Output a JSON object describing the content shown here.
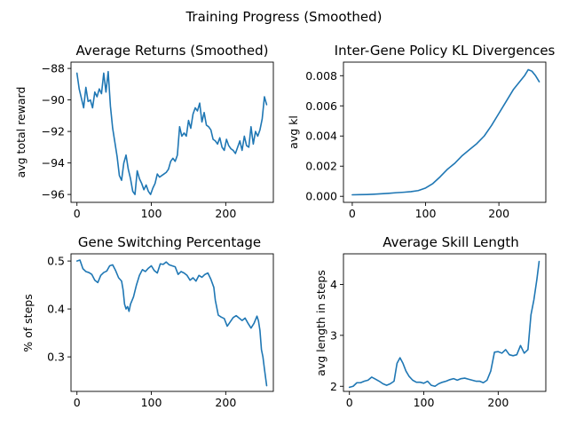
{
  "figure_title": "Training Progress (Smoothed)",
  "colors": {
    "series": "#1f77b4",
    "axes": "#000000",
    "background": "#ffffff"
  },
  "chart_data": [
    {
      "type": "line",
      "title": "Average Returns (Smoothed)",
      "xlabel": "",
      "ylabel": "avg total reward",
      "xlim": [
        -8,
        264
      ],
      "ylim": [
        -96.5,
        -87.6
      ],
      "xticks": [
        0,
        100,
        200
      ],
      "xtick_labels": [
        "0",
        "100",
        "200"
      ],
      "yticks": [
        -96,
        -94,
        -92,
        -90,
        -88
      ],
      "ytick_labels": [
        "−96",
        "−94",
        "−92",
        "−90",
        "−88"
      ],
      "grid": false,
      "series": [
        {
          "x": [
            0,
            3,
            6,
            9,
            12,
            15,
            18,
            21,
            24,
            27,
            30,
            33,
            36,
            39,
            42,
            45,
            48,
            51,
            54,
            57,
            60,
            63,
            66,
            69,
            72,
            75,
            78,
            81,
            84,
            87,
            90,
            93,
            96,
            99,
            102,
            105,
            108,
            111,
            114,
            117,
            120,
            123,
            126,
            129,
            132,
            135,
            138,
            141,
            144,
            147,
            150,
            153,
            156,
            159,
            162,
            165,
            168,
            171,
            174,
            177,
            180,
            183,
            186,
            189,
            192,
            195,
            198,
            201,
            204,
            207,
            210,
            213,
            216,
            219,
            222,
            225,
            228,
            231,
            234,
            237,
            240,
            243,
            246,
            249,
            252,
            255
          ],
          "y": [
            -88.3,
            -89.3,
            -89.9,
            -90.5,
            -89.2,
            -90.1,
            -90.0,
            -90.5,
            -89.5,
            -89.8,
            -89.3,
            -89.6,
            -88.3,
            -89.5,
            -88.2,
            -90.4,
            -91.8,
            -92.7,
            -93.6,
            -94.8,
            -95.1,
            -94.0,
            -93.5,
            -94.4,
            -95.0,
            -95.8,
            -96.0,
            -94.5,
            -95.0,
            -95.3,
            -95.7,
            -95.4,
            -95.8,
            -96.0,
            -95.6,
            -95.3,
            -94.7,
            -94.9,
            -94.8,
            -94.7,
            -94.6,
            -94.4,
            -93.9,
            -93.7,
            -93.9,
            -93.5,
            -91.7,
            -92.3,
            -92.1,
            -92.3,
            -91.3,
            -91.8,
            -90.9,
            -90.5,
            -90.7,
            -90.2,
            -91.4,
            -90.8,
            -91.6,
            -91.7,
            -91.9,
            -92.5,
            -92.6,
            -92.8,
            -92.4,
            -93.0,
            -93.2,
            -92.5,
            -92.9,
            -93.1,
            -93.2,
            -93.4,
            -93.0,
            -92.6,
            -93.2,
            -92.3,
            -92.9,
            -93.0,
            -91.7,
            -92.8,
            -92.0,
            -92.3,
            -91.9,
            -91.2,
            -89.8,
            -90.3
          ]
        }
      ]
    },
    {
      "type": "line",
      "title": "Inter-Gene Policy KL Divergences",
      "xlabel": "",
      "ylabel": "avg kl",
      "xlim": [
        -12,
        264
      ],
      "ylim": [
        -0.0004,
        0.0089
      ],
      "xticks": [
        0,
        100,
        200
      ],
      "xtick_labels": [
        "0",
        "100",
        "200"
      ],
      "yticks": [
        0.0,
        0.002,
        0.004,
        0.006,
        0.008
      ],
      "ytick_labels": [
        "0.000",
        "0.002",
        "0.004",
        "0.006",
        "0.008"
      ],
      "grid": false,
      "series": [
        {
          "x": [
            0,
            10,
            20,
            30,
            40,
            50,
            60,
            70,
            80,
            90,
            100,
            110,
            120,
            130,
            140,
            150,
            160,
            170,
            180,
            190,
            200,
            210,
            220,
            230,
            235,
            240,
            245,
            250,
            255
          ],
          "y": [
            0.0001,
            0.00011,
            0.00012,
            0.00014,
            0.00017,
            0.0002,
            0.00024,
            0.00027,
            0.00031,
            0.00038,
            0.00055,
            0.00085,
            0.0013,
            0.0018,
            0.0022,
            0.0027,
            0.0031,
            0.0035,
            0.004,
            0.0047,
            0.0055,
            0.0063,
            0.0071,
            0.0077,
            0.008,
            0.0084,
            0.0083,
            0.008,
            0.0076
          ]
        }
      ]
    },
    {
      "type": "line",
      "title": "Gene Switching Percentage",
      "xlabel": "",
      "ylabel": "% of steps",
      "xlim": [
        -8,
        264
      ],
      "ylim": [
        0.228,
        0.515
      ],
      "xticks": [
        0,
        100,
        200
      ],
      "xtick_labels": [
        "0",
        "100",
        "200"
      ],
      "yticks": [
        0.3,
        0.4,
        0.5
      ],
      "ytick_labels": [
        "0.3",
        "0.4",
        "0.5"
      ],
      "grid": false,
      "series": [
        {
          "x": [
            0,
            4,
            8,
            12,
            16,
            20,
            24,
            28,
            32,
            36,
            40,
            44,
            48,
            52,
            56,
            60,
            62,
            64,
            66,
            68,
            70,
            72,
            76,
            80,
            84,
            88,
            92,
            96,
            100,
            104,
            108,
            112,
            116,
            120,
            124,
            128,
            132,
            136,
            140,
            144,
            148,
            152,
            156,
            160,
            164,
            168,
            172,
            176,
            180,
            184,
            186,
            190,
            194,
            198,
            202,
            206,
            210,
            214,
            218,
            222,
            226,
            230,
            234,
            238,
            242,
            244,
            246,
            248,
            250,
            252,
            255
          ],
          "y": [
            0.5,
            0.502,
            0.484,
            0.478,
            0.476,
            0.472,
            0.46,
            0.455,
            0.47,
            0.476,
            0.479,
            0.49,
            0.492,
            0.48,
            0.465,
            0.458,
            0.44,
            0.41,
            0.4,
            0.405,
            0.395,
            0.41,
            0.425,
            0.45,
            0.47,
            0.482,
            0.478,
            0.485,
            0.49,
            0.48,
            0.475,
            0.494,
            0.493,
            0.498,
            0.492,
            0.49,
            0.488,
            0.472,
            0.478,
            0.475,
            0.47,
            0.46,
            0.465,
            0.458,
            0.47,
            0.466,
            0.472,
            0.475,
            0.462,
            0.445,
            0.418,
            0.387,
            0.383,
            0.38,
            0.364,
            0.373,
            0.382,
            0.386,
            0.381,
            0.376,
            0.381,
            0.37,
            0.36,
            0.37,
            0.385,
            0.375,
            0.355,
            0.315,
            0.3,
            0.275,
            0.24
          ]
        }
      ]
    },
    {
      "type": "line",
      "title": "Average Skill Length",
      "xlabel": "",
      "ylabel": "avg length in steps",
      "xlim": [
        -8,
        264
      ],
      "ylim": [
        1.9,
        4.6
      ],
      "xticks": [
        0,
        100,
        200
      ],
      "xtick_labels": [
        "0",
        "100",
        "200"
      ],
      "yticks": [
        2,
        3,
        4
      ],
      "ytick_labels": [
        "2",
        "3",
        "4"
      ],
      "grid": false,
      "series": [
        {
          "x": [
            0,
            5,
            10,
            15,
            20,
            25,
            30,
            35,
            40,
            45,
            50,
            55,
            60,
            64,
            68,
            72,
            76,
            80,
            85,
            90,
            95,
            100,
            105,
            110,
            115,
            120,
            125,
            130,
            135,
            140,
            145,
            150,
            155,
            160,
            165,
            170,
            175,
            180,
            185,
            190,
            195,
            200,
            205,
            210,
            215,
            220,
            225,
            230,
            235,
            240,
            244,
            248,
            252,
            255
          ],
          "y": [
            1.98,
            2.0,
            2.07,
            2.07,
            2.1,
            2.12,
            2.18,
            2.14,
            2.1,
            2.05,
            2.02,
            2.05,
            2.1,
            2.45,
            2.56,
            2.45,
            2.3,
            2.2,
            2.12,
            2.08,
            2.08,
            2.06,
            2.1,
            2.02,
            2.0,
            2.05,
            2.08,
            2.1,
            2.13,
            2.15,
            2.12,
            2.15,
            2.16,
            2.14,
            2.12,
            2.1,
            2.1,
            2.07,
            2.12,
            2.3,
            2.67,
            2.68,
            2.65,
            2.72,
            2.62,
            2.6,
            2.62,
            2.8,
            2.65,
            2.72,
            3.4,
            3.7,
            4.1,
            4.45
          ]
        }
      ]
    }
  ]
}
